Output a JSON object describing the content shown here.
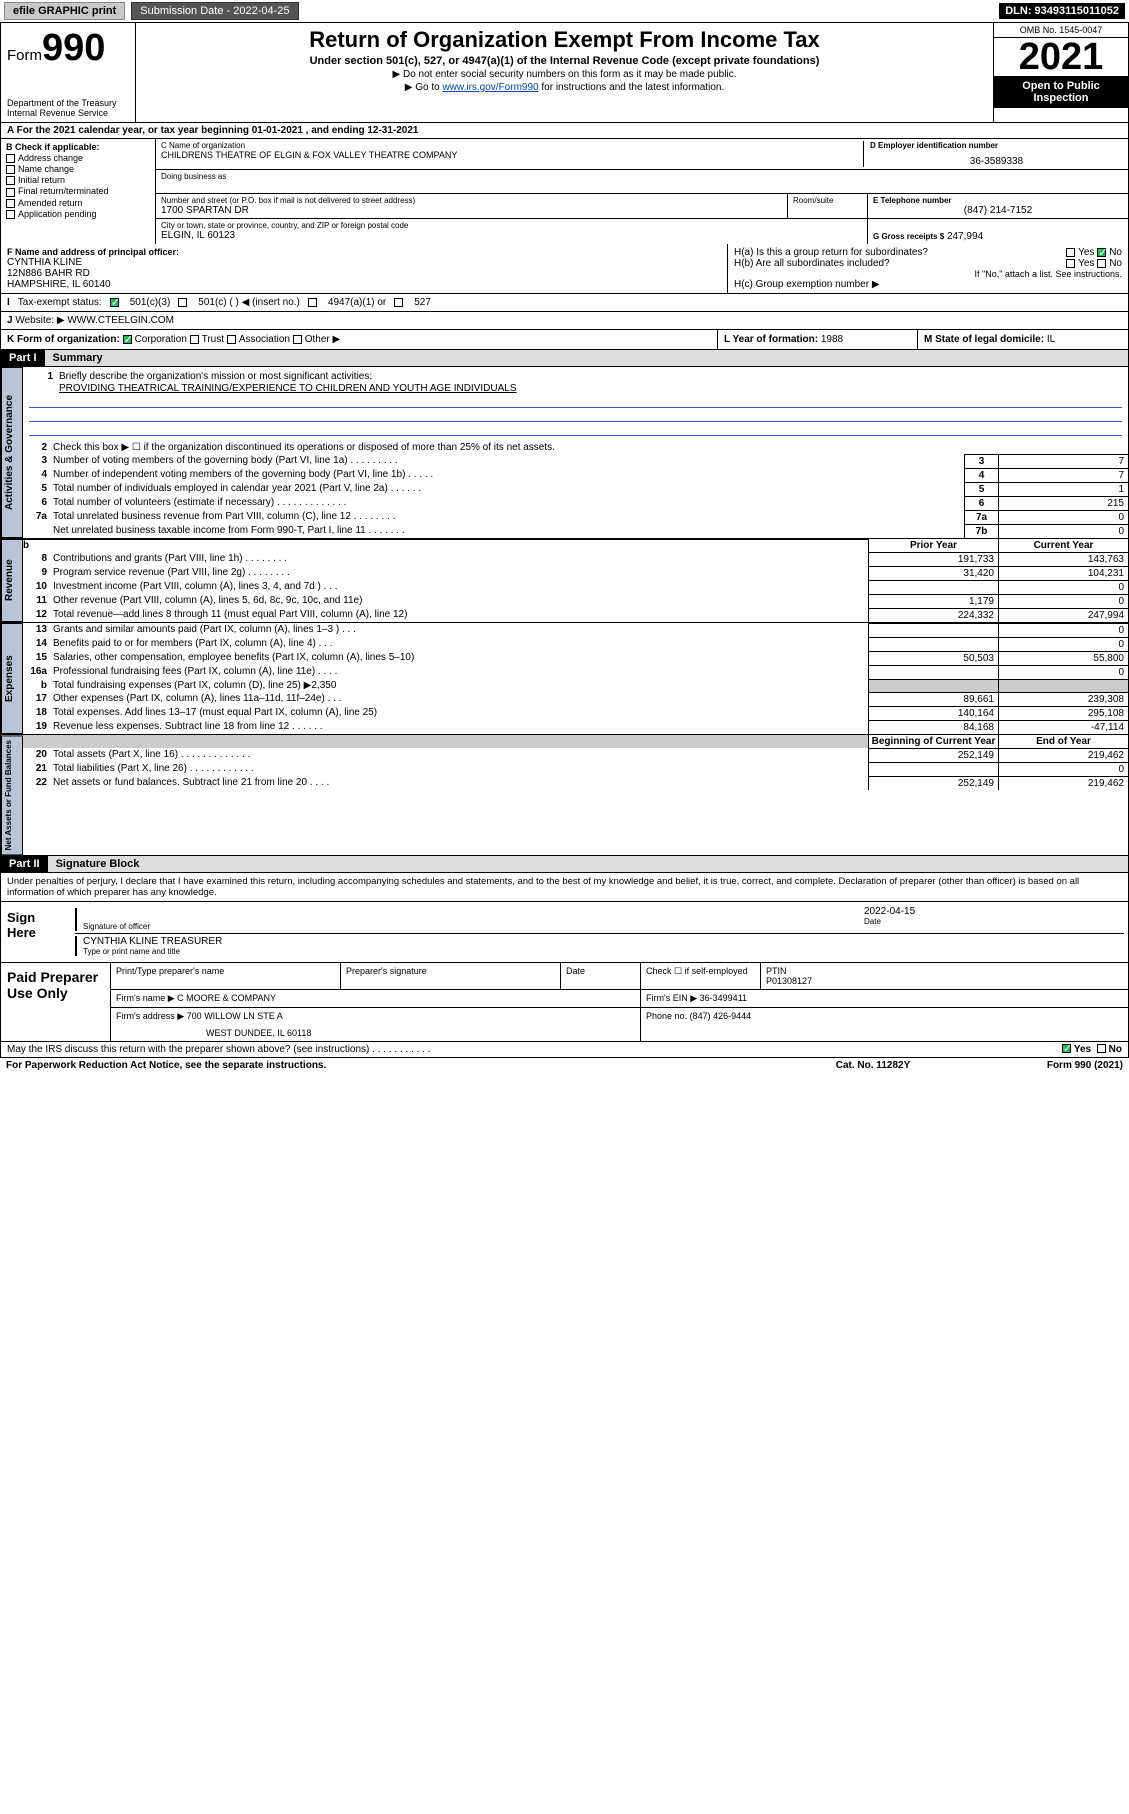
{
  "topbar": {
    "efile": "efile GRAPHIC print",
    "subdate_lbl": "Submission Date - 2022-04-25",
    "dln": "DLN: 93493115011052"
  },
  "header": {
    "form": "Form",
    "num": "990",
    "title": "Return of Organization Exempt From Income Tax",
    "sub1": "Under section 501(c), 527, or 4947(a)(1) of the Internal Revenue Code (except private foundations)",
    "sub2": "▶ Do not enter social security numbers on this form as it may be made public.",
    "sub3_pre": "▶ Go to ",
    "sub3_link": "www.irs.gov/Form990",
    "sub3_post": " for instructions and the latest information.",
    "dept": "Department of the Treasury\nInternal Revenue Service",
    "omb": "OMB No. 1545-0047",
    "year": "2021",
    "open": "Open to Public Inspection"
  },
  "period": "For the 2021 calendar year, or tax year beginning 01-01-2021    , and ending 12-31-2021",
  "secB": {
    "label": "B Check if applicable:",
    "opts": [
      "Address change",
      "Name change",
      "Initial return",
      "Final return/terminated",
      "Amended return",
      "Application pending"
    ]
  },
  "secC": {
    "name_lbl": "C Name of organization",
    "name": "CHILDRENS THEATRE OF ELGIN & FOX VALLEY THEATRE COMPANY",
    "dba_lbl": "Doing business as",
    "dba": "",
    "addr_lbl": "Number and street (or P.O. box if mail is not delivered to street address)",
    "room_lbl": "Room/suite",
    "addr": "1700 SPARTAN DR",
    "city_lbl": "City or town, state or province, country, and ZIP or foreign postal code",
    "city": "ELGIN, IL  60123"
  },
  "secD": {
    "lbl": "D Employer identification number",
    "val": "36-3589338"
  },
  "secE": {
    "lbl": "E Telephone number",
    "val": "(847) 214-7152"
  },
  "secG": {
    "lbl": "G Gross receipts $",
    "val": "247,994"
  },
  "secF": {
    "lbl": "F  Name and address of principal officer:",
    "name": "CYNTHIA KLINE",
    "addr1": "12N886 BAHR RD",
    "addr2": "HAMPSHIRE, IL  60140"
  },
  "secH": {
    "a": "H(a)  Is this a group return for subordinates?",
    "a_yes": "Yes",
    "a_no": "No",
    "b": "H(b)  Are all subordinates included?",
    "b_yes": "Yes",
    "b_no": "No",
    "b_note": "If \"No,\" attach a list. See instructions.",
    "c": "H(c)  Group exemption number ▶"
  },
  "secI": {
    "lbl": "Tax-exempt status:",
    "c3": "501(c)(3)",
    "c": "501(c) (  ) ◀ (insert no.)",
    "a1": "4947(a)(1) or",
    "s527": "527"
  },
  "secJ": {
    "lbl": "Website: ▶",
    "val": "WWW.CTEELGIN.COM"
  },
  "secK": {
    "lbl": "K Form of organization:",
    "corp": "Corporation",
    "trust": "Trust",
    "assoc": "Association",
    "other": "Other ▶"
  },
  "secL": {
    "lbl": "L Year of formation:",
    "val": "1988"
  },
  "secM": {
    "lbl": "M State of legal domicile:",
    "val": "IL"
  },
  "part1": {
    "hdr": "Part I",
    "title": "Summary"
  },
  "gov": {
    "tab": "Activities & Governance",
    "l1": "Briefly describe the organization's mission or most significant activities:",
    "l1v": "PROVIDING THEATRICAL TRAINING/EXPERIENCE TO CHILDREN AND YOUTH AGE INDIVIDUALS",
    "l2": "Check this box ▶ ☐  if the organization discontinued its operations or disposed of more than 25% of its net assets.",
    "l3": "Number of voting members of the governing body (Part VI, line 1a)   .    .    .    .    .    .    .    .    .",
    "l3v": "7",
    "l4": "Number of independent voting members of the governing body (Part VI, line 1b)   .    .    .    .    .",
    "l4v": "7",
    "l5": "Total number of individuals employed in calendar year 2021 (Part V, line 2a)   .    .    .    .    .    .",
    "l5v": "1",
    "l6": "Total number of volunteers (estimate if necessary)   .    .    .    .    .    .    .    .    .    .    .    .    .",
    "l6v": "215",
    "l7a": "Total unrelated business revenue from Part VIII, column (C), line 12   .    .    .    .    .    .    .    .",
    "l7av": "0",
    "l7b": "Net unrelated business taxable income from Form 990-T, Part I, line 11   .    .    .    .    .    .    .",
    "l7bv": "0"
  },
  "rev": {
    "tab": "Revenue",
    "prior": "Prior Year",
    "curr": "Current Year",
    "rows": [
      {
        "n": "8",
        "t": "Contributions and grants (Part VIII, line 1h)   .    .    .    .    .    .    .    .",
        "p": "191,733",
        "c": "143,763"
      },
      {
        "n": "9",
        "t": "Program service revenue (Part VIII, line 2g)   .    .    .    .    .    .    .    .",
        "p": "31,420",
        "c": "104,231"
      },
      {
        "n": "10",
        "t": "Investment income (Part VIII, column (A), lines 3, 4, and 7d )   .    .    .",
        "p": "",
        "c": "0"
      },
      {
        "n": "11",
        "t": "Other revenue (Part VIII, column (A), lines 5, 6d, 8c, 9c, 10c, and 11e)",
        "p": "1,179",
        "c": "0"
      },
      {
        "n": "12",
        "t": "Total revenue—add lines 8 through 11 (must equal Part VIII, column (A), line 12)",
        "p": "224,332",
        "c": "247,994"
      }
    ]
  },
  "exp": {
    "tab": "Expenses",
    "rows": [
      {
        "n": "13",
        "t": "Grants and similar amounts paid (Part IX, column (A), lines 1–3 )   .    .    .",
        "p": "",
        "c": "0"
      },
      {
        "n": "14",
        "t": "Benefits paid to or for members (Part IX, column (A), line 4)   .    .    .",
        "p": "",
        "c": "0"
      },
      {
        "n": "15",
        "t": "Salaries, other compensation, employee benefits (Part IX, column (A), lines 5–10)",
        "p": "50,503",
        "c": "55,800"
      },
      {
        "n": "16a",
        "t": "Professional fundraising fees (Part IX, column (A), line 11e)   .    .    .    .",
        "p": "",
        "c": "0"
      },
      {
        "n": "b",
        "t": "Total fundraising expenses (Part IX, column (D), line 25) ▶2,350",
        "p": "grey",
        "c": "grey"
      },
      {
        "n": "17",
        "t": "Other expenses (Part IX, column (A), lines 11a–11d, 11f–24e)   .    .    .",
        "p": "89,661",
        "c": "239,308"
      },
      {
        "n": "18",
        "t": "Total expenses. Add lines 13–17 (must equal Part IX, column (A), line 25)",
        "p": "140,164",
        "c": "295,108"
      },
      {
        "n": "19",
        "t": "Revenue less expenses. Subtract line 18 from line 12   .    .    .    .    .    .",
        "p": "84,168",
        "c": "-47,114"
      }
    ]
  },
  "net": {
    "tab": "Net Assets or Fund Balances",
    "begin": "Beginning of Current Year",
    "end": "End of Year",
    "rows": [
      {
        "n": "20",
        "t": "Total assets (Part X, line 16)   .    .    .    .    .    .    .    .    .    .    .    .    .",
        "p": "252,149",
        "c": "219,462"
      },
      {
        "n": "21",
        "t": "Total liabilities (Part X, line 26)   .    .    .    .    .    .    .    .    .    .    .    .",
        "p": "",
        "c": "0"
      },
      {
        "n": "22",
        "t": "Net assets or fund balances. Subtract line 21 from line 20   .    .    .    .",
        "p": "252,149",
        "c": "219,462"
      }
    ]
  },
  "part2": {
    "hdr": "Part II",
    "title": "Signature Block"
  },
  "sig": {
    "decl": "Under penalties of perjury, I declare that I have examined this return, including accompanying schedules and statements, and to the best of my knowledge and belief, it is true, correct, and complete. Declaration of preparer (other than officer) is based on all information of which preparer has any knowledge.",
    "here": "Sign Here",
    "sigoff": "Signature of officer",
    "date": "2022-04-15",
    "name": "CYNTHIA KLINE TREASURER",
    "nmlbl": "Type or print name and title"
  },
  "paid": {
    "lbl": "Paid Preparer Use Only",
    "h1": "Print/Type preparer's name",
    "h2": "Preparer's signature",
    "h3": "Date",
    "h4": "Check ☐ if self-employed",
    "h5": "PTIN",
    "ptin": "P01308127",
    "firm_lbl": "Firm's name    ▶",
    "firm": "C MOORE & COMPANY",
    "ein_lbl": "Firm's EIN ▶",
    "ein": "36-3499411",
    "addr_lbl": "Firm's address ▶",
    "addr1": "700 WILLOW LN STE A",
    "addr2": "WEST DUNDEE, IL  60118",
    "ph_lbl": "Phone no.",
    "ph": "(847) 426-9444"
  },
  "foot": {
    "discuss": "May the IRS discuss this return with the preparer shown above? (see instructions)   .    .    .    .    .    .    .    .    .    .    .",
    "yes": "Yes",
    "no": "No",
    "pra": "For Paperwork Reduction Act Notice, see the separate instructions.",
    "cat": "Cat. No. 11282Y",
    "form": "Form 990 (2021)"
  }
}
